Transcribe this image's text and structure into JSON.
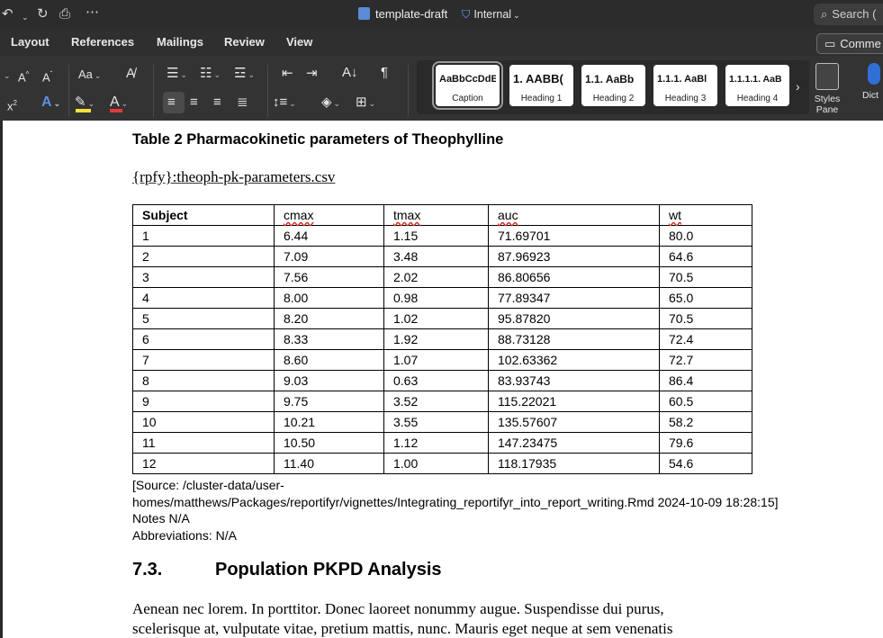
{
  "titlebar": {
    "doc_title": "template-draft",
    "sensitivity": "Internal",
    "search_placeholder": "Search ("
  },
  "menu_tabs": [
    "Layout",
    "References",
    "Mailings",
    "Review",
    "View"
  ],
  "comments_label": "Comme",
  "ribbon": {
    "styles": [
      {
        "preview": "AaBbCcDdE",
        "name": "Caption"
      },
      {
        "preview": "1. AABB(",
        "name": "Heading 1"
      },
      {
        "preview": "1.1. AaBb",
        "name": "Heading 2"
      },
      {
        "preview": "1.1.1. AaBl",
        "name": "Heading 3"
      },
      {
        "preview": "1.1.1.1. AaB",
        "name": "Heading 4"
      }
    ],
    "styles_pane_label": "Styles Pane",
    "dictate_label": "Dict",
    "gallery_more": "›"
  },
  "document": {
    "table_caption": "Table 2 Pharmacokinetic parameters of Theophylline",
    "rpfy_line": "{rpfy}:theoph-pk-parameters.csv",
    "table": {
      "headers": [
        "Subject",
        "cmax",
        "tmax",
        "auc",
        "wt"
      ],
      "rows": [
        [
          "1",
          "6.44",
          "1.15",
          "71.69701",
          "80.0"
        ],
        [
          "2",
          "7.09",
          "3.48",
          "87.96923",
          "64.6"
        ],
        [
          "3",
          "7.56",
          "2.02",
          "86.80656",
          "70.5"
        ],
        [
          "4",
          "8.00",
          "0.98",
          "77.89347",
          "65.0"
        ],
        [
          "5",
          "8.20",
          "1.02",
          "95.87820",
          "70.5"
        ],
        [
          "6",
          "8.33",
          "1.92",
          "88.73128",
          "72.4"
        ],
        [
          "7",
          "8.60",
          "1.07",
          "102.63362",
          "72.7"
        ],
        [
          "8",
          "9.03",
          "0.63",
          "83.93743",
          "86.4"
        ],
        [
          "9",
          "9.75",
          "3.52",
          "115.22021",
          "60.5"
        ],
        [
          "10",
          "10.21",
          "3.55",
          "135.57607",
          "58.2"
        ],
        [
          "11",
          "10.50",
          "1.12",
          "147.23475",
          "79.6"
        ],
        [
          "12",
          "11.40",
          "1.00",
          "118.17935",
          "54.6"
        ]
      ]
    },
    "source_line1": "[Source: /cluster-data/user-",
    "source_line2": "homes/matthews/Packages/reportifyr/vignettes/Integrating_reportifyr_into_report_writing.Rmd 2024-10-09 18:28:15]",
    "notes": "Notes N/A",
    "abbreviations": "Abbreviations: N/A",
    "section_number": "7.3.",
    "section_title": "Population PKPD Analysis",
    "body_line1": "Aenean nec lorem. In porttitor. Donec laoreet nonummy augue. Suspendisse dui purus,",
    "body_line2": "scelerisque at, vulputate vitae, pretium mattis, nunc. Mauris eget neque at sem venenatis"
  }
}
